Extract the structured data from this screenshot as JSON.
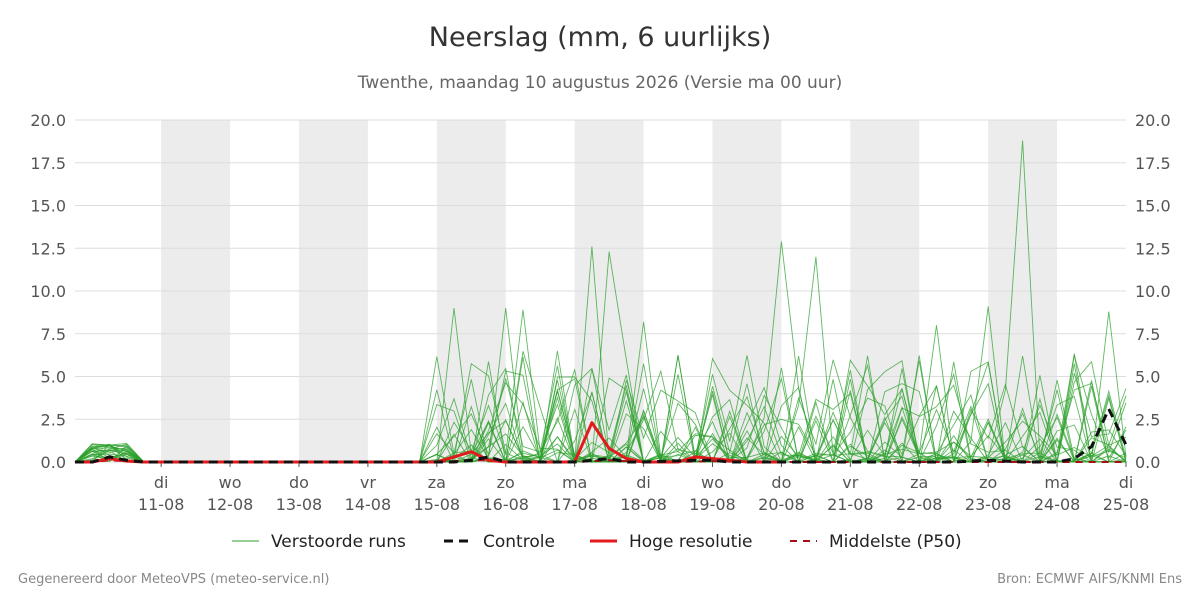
{
  "title": "Neerslag (mm, 6 uurlijks)",
  "subtitle": "Twenthe, maandag 10 augustus 2026 (Versie ma 00 uur)",
  "footer_left": "Gegenereerd door MeteoVPS (meteo-service.nl)",
  "footer_right": "Bron: ECMWF AIFS/KNMI Ens",
  "chart_data": {
    "type": "line",
    "x_unit": "days since 10-08-2026 00:00",
    "xlim": [
      -0.25,
      15
    ],
    "ylim": [
      0,
      20
    ],
    "y_ticks": [
      "0.0",
      "2.5",
      "5.0",
      "7.5",
      "10.0",
      "12.5",
      "15.0",
      "17.5",
      "20.0"
    ],
    "day_ticks": [
      {
        "day": "di",
        "date": "11-08"
      },
      {
        "day": "wo",
        "date": "12-08"
      },
      {
        "day": "do",
        "date": "13-08"
      },
      {
        "day": "vr",
        "date": "14-08"
      },
      {
        "day": "za",
        "date": "15-08"
      },
      {
        "day": "zo",
        "date": "16-08"
      },
      {
        "day": "ma",
        "date": "17-08"
      },
      {
        "day": "di",
        "date": "18-08"
      },
      {
        "day": "wo",
        "date": "19-08"
      },
      {
        "day": "do",
        "date": "20-08"
      },
      {
        "day": "vr",
        "date": "21-08"
      },
      {
        "day": "za",
        "date": "22-08"
      },
      {
        "day": "zo",
        "date": "23-08"
      },
      {
        "day": "ma",
        "date": "24-08"
      },
      {
        "day": "di",
        "date": "25-08"
      }
    ],
    "shaded_bands": [
      [
        1,
        2
      ],
      [
        3,
        4
      ],
      [
        5,
        6
      ],
      [
        7,
        8
      ],
      [
        9,
        10
      ],
      [
        11,
        12
      ],
      [
        13,
        14
      ]
    ],
    "grid": true,
    "legend_position": "bottom",
    "legend": [
      "Verstoorde runs",
      "Controle",
      "Hoge resolutie",
      "Middelste (P50)"
    ],
    "colors": {
      "ensemble": "#2ca02c",
      "control": "#111111",
      "hires": "#e31a1c",
      "median": "#a50f15",
      "band": "#ececec",
      "grid": "#dddddd"
    },
    "hires": {
      "x": [
        -0.25,
        0,
        0.25,
        0.5,
        0.75,
        1,
        1.25,
        5,
        5.25,
        5.5,
        5.75,
        6,
        6.25,
        7,
        7.25,
        7.5,
        7.75,
        8,
        8.25,
        8.5,
        8.75,
        9,
        9.25,
        9.5,
        9.75,
        10
      ],
      "y": [
        0,
        0,
        0.2,
        0.05,
        0,
        0,
        0,
        0,
        0.3,
        0.6,
        0.1,
        0,
        0,
        0,
        2.3,
        0.8,
        0.2,
        0,
        0,
        0,
        0.3,
        0.2,
        0.1,
        0,
        0,
        0
      ]
    },
    "control": {
      "x": [
        -0.25,
        0,
        0.25,
        0.5,
        0.75,
        1,
        5,
        5.25,
        5.5,
        5.75,
        6,
        7,
        7.25,
        7.5,
        7.75,
        8,
        8.75,
        9,
        9.25,
        9.5,
        9.75,
        10,
        11,
        11.5,
        12,
        12.5,
        13,
        13.5,
        14,
        14.25,
        14.5,
        14.75,
        15
      ],
      "y": [
        0,
        0,
        0.3,
        0.1,
        0,
        0,
        0,
        0,
        0.1,
        0.3,
        0,
        0,
        0.1,
        0.2,
        0,
        0,
        0.1,
        0.1,
        0,
        0,
        0,
        0,
        0,
        0,
        0,
        0,
        0.1,
        0,
        0,
        0.2,
        0.9,
        3.1,
        1.0
      ]
    },
    "median": {
      "x": [
        -0.25,
        0,
        0.25,
        0.5,
        0.75,
        1,
        5,
        5.25,
        5.5,
        5.75,
        6,
        6.5,
        7,
        7.5,
        8,
        8.5,
        9,
        9.5,
        10,
        10.5,
        11,
        11.5,
        12,
        12.5,
        13,
        13.5,
        14,
        14.5,
        15
      ],
      "y": [
        0,
        0,
        0.1,
        0.05,
        0,
        0,
        0,
        0.05,
        0.1,
        0.1,
        0,
        0,
        0,
        0.1,
        0,
        0,
        0.05,
        0,
        0,
        0,
        0,
        0,
        0,
        0,
        0,
        0,
        0,
        0,
        0
      ]
    }
  }
}
